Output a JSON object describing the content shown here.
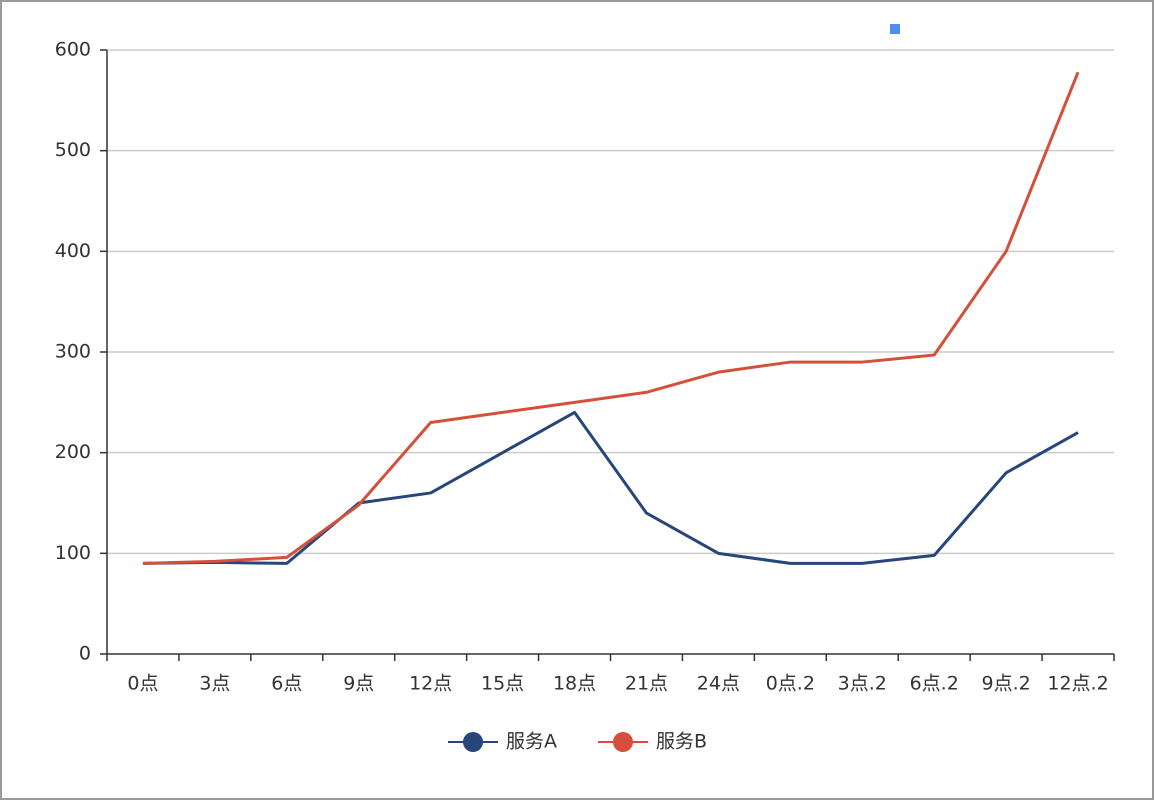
{
  "chart_data": {
    "type": "line",
    "categories": [
      "0点",
      "3点",
      "6点",
      "9点",
      "12点",
      "15点",
      "18点",
      "21点",
      "24点",
      "0点.2",
      "3点.2",
      "6点.2",
      "9点.2",
      "12点.2"
    ],
    "series": [
      {
        "name": "服务A",
        "color": "#27467a",
        "values": [
          90,
          91,
          90,
          150,
          160,
          200,
          240,
          140,
          100,
          90,
          90,
          98,
          180,
          220
        ]
      },
      {
        "name": "服务B",
        "color": "#d4503a",
        "values": [
          90,
          92,
          96,
          148,
          230,
          240,
          250,
          260,
          280,
          290,
          290,
          297,
          400,
          578
        ]
      }
    ],
    "ylim": [
      0,
      600
    ],
    "yticks": [
      0,
      100,
      200,
      300,
      400,
      500,
      600
    ],
    "grid": true,
    "legend": "bottom"
  }
}
